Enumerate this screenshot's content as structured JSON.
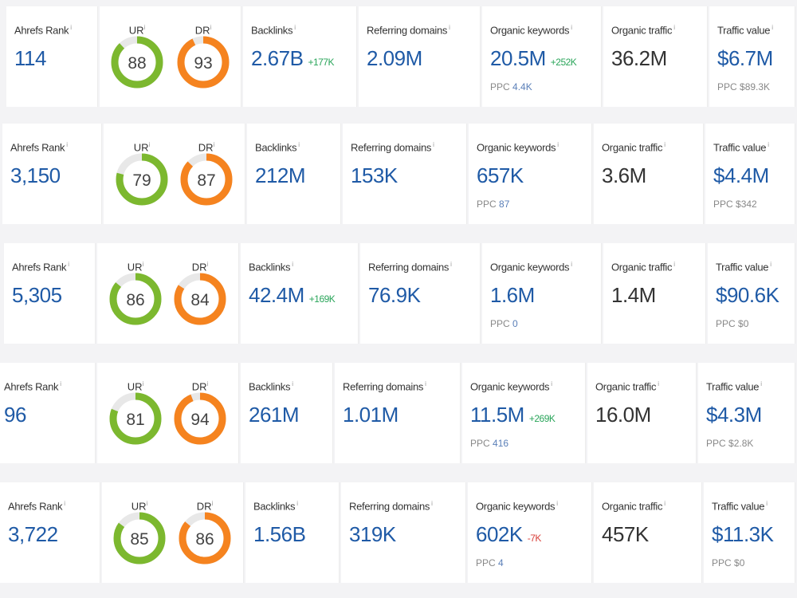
{
  "labels": {
    "rank": "Ahrefs Rank",
    "ur": "UR",
    "dr": "DR",
    "backlinks": "Backlinks",
    "ref": "Referring domains",
    "kw": "Organic keywords",
    "traffic": "Organic traffic",
    "value": "Traffic value",
    "ppc": "PPC",
    "info": "i"
  },
  "colors": {
    "ur": "#7cb82f",
    "dr": "#f5831f",
    "track": "#e8e8e8",
    "blue": "#1f5aa6",
    "green": "#2aa55a",
    "red": "#d9413b"
  },
  "rows": [
    {
      "rank": "114",
      "ur": 88,
      "dr": 93,
      "backlinks": "2.67B",
      "backlinks_delta": "+177K",
      "ref": "2.09M",
      "kw": "20.5M",
      "kw_delta": "+252K",
      "kw_ppc": "4.4K",
      "traffic": "36.2M",
      "value": "$6.7M",
      "value_ppc": "$89.3K"
    },
    {
      "rank": "3,150",
      "ur": 79,
      "dr": 87,
      "backlinks": "212M",
      "backlinks_delta": "",
      "ref": "153K",
      "kw": "657K",
      "kw_delta": "",
      "kw_ppc": "87",
      "traffic": "3.6M",
      "value": "$4.4M",
      "value_ppc": "$342"
    },
    {
      "rank": "5,305",
      "ur": 86,
      "dr": 84,
      "backlinks": "42.4M",
      "backlinks_delta": "+169K",
      "ref": "76.9K",
      "kw": "1.6M",
      "kw_delta": "",
      "kw_ppc": "0",
      "traffic": "1.4M",
      "value": "$90.6K",
      "value_ppc": "$0"
    },
    {
      "rank": "96",
      "ur": 81,
      "dr": 94,
      "backlinks": "261M",
      "backlinks_delta": "",
      "ref": "1.01M",
      "kw": "11.5M",
      "kw_delta": "+269K",
      "kw_ppc": "416",
      "traffic": "16.0M",
      "value": "$4.3M",
      "value_ppc": "$2.8K"
    },
    {
      "rank": "3,722",
      "ur": 85,
      "dr": 86,
      "backlinks": "1.56B",
      "backlinks_delta": "",
      "ref": "319K",
      "kw": "602K",
      "kw_delta": "-7K",
      "kw_ppc": "4",
      "traffic": "457K",
      "value": "$11.3K",
      "value_ppc": "$0"
    }
  ]
}
